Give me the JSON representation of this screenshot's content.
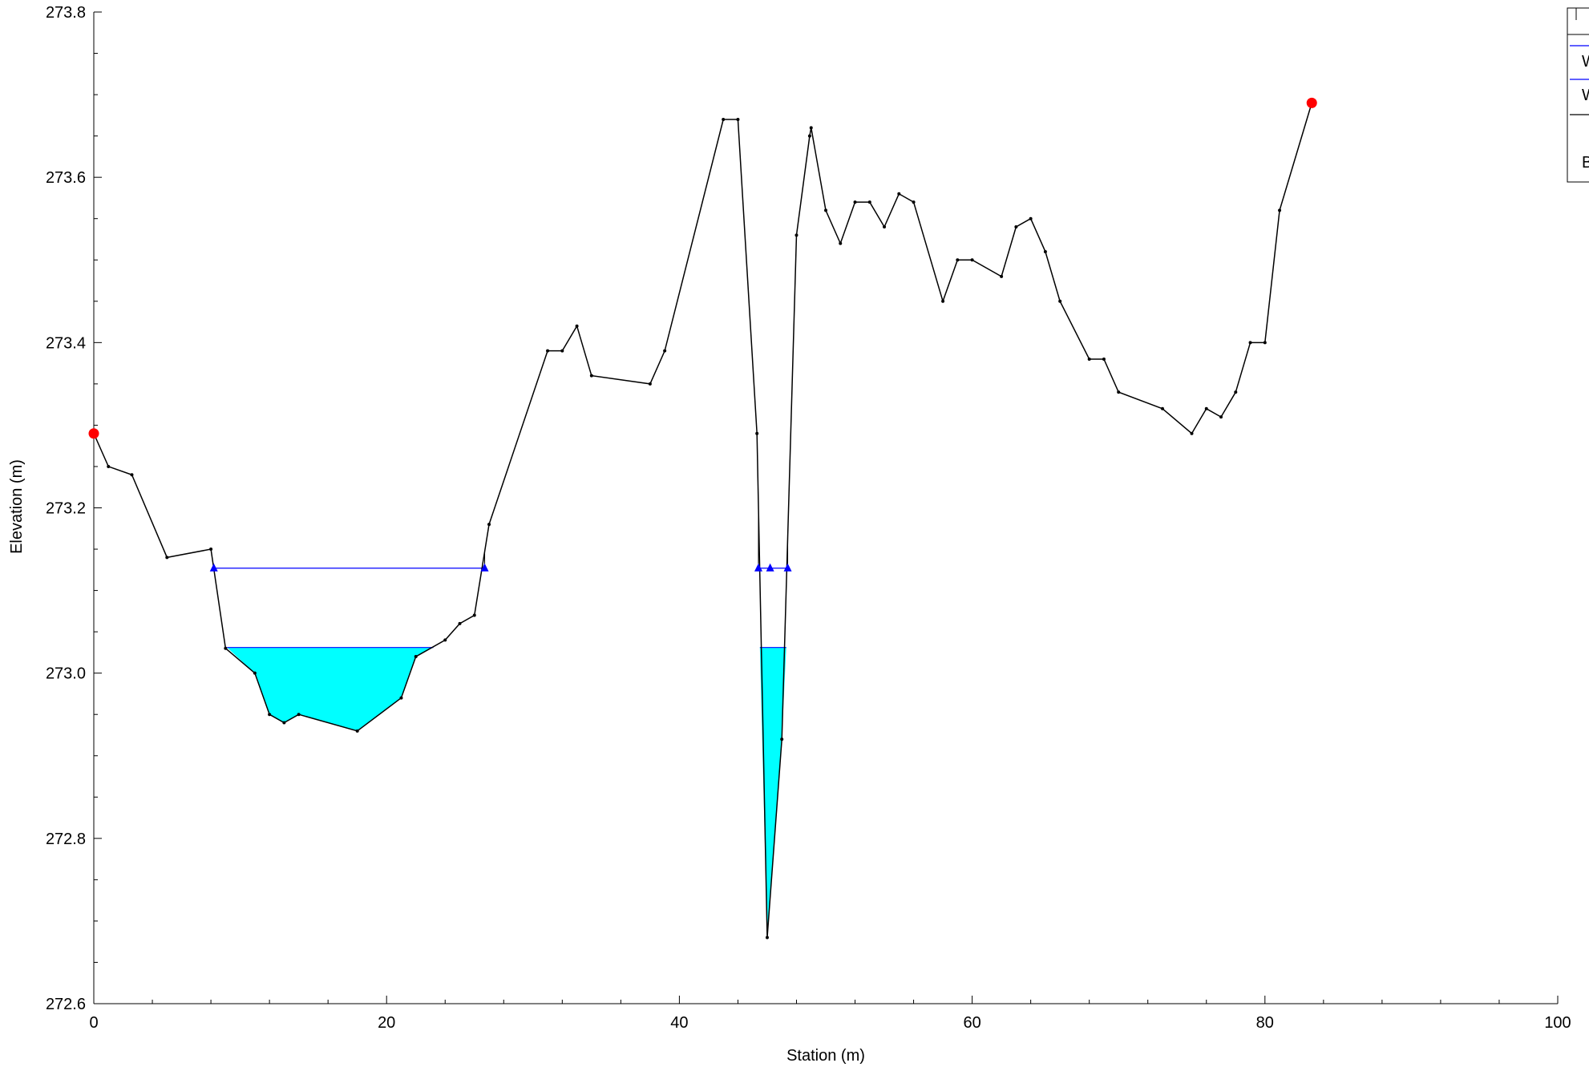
{
  "chart_data": {
    "type": "line",
    "xlabel": "Station (m)",
    "ylabel": "Elevation (m)",
    "xlim": [
      0,
      100
    ],
    "ylim": [
      272.6,
      273.8
    ],
    "x_ticks": [
      0,
      20,
      40,
      60,
      80,
      100
    ],
    "y_ticks": [
      272.6,
      272.8,
      273.0,
      273.2,
      273.4,
      273.6,
      273.8
    ],
    "x_tick_labels": [
      "0",
      "20",
      "40",
      "60",
      "80",
      "100"
    ],
    "y_tick_labels": [
      "272.6",
      "272.8",
      "273.0",
      "273.2",
      "273.4",
      "273.6",
      "273.8"
    ],
    "legend_entries": [
      "W",
      "W",
      "B"
    ],
    "colors": {
      "ground": "#000000",
      "water": "#0000ff",
      "fill": "#00ffff",
      "bank": "#ff0000"
    },
    "ground": [
      [
        0,
        273.29
      ],
      [
        1,
        273.25
      ],
      [
        2.6,
        273.24
      ],
      [
        5,
        273.14
      ],
      [
        8,
        273.15
      ],
      [
        9,
        273.03
      ],
      [
        11,
        273.0
      ],
      [
        12,
        272.95
      ],
      [
        13,
        272.94
      ],
      [
        14,
        272.95
      ],
      [
        18,
        272.93
      ],
      [
        21,
        272.97
      ],
      [
        22,
        273.02
      ],
      [
        24,
        273.04
      ],
      [
        25,
        273.06
      ],
      [
        26,
        273.07
      ],
      [
        27,
        273.18
      ],
      [
        31,
        273.39
      ],
      [
        32,
        273.39
      ],
      [
        33,
        273.42
      ],
      [
        34,
        273.36
      ],
      [
        38,
        273.35
      ],
      [
        39,
        273.39
      ],
      [
        43,
        273.67
      ],
      [
        44,
        273.67
      ],
      [
        45.3,
        273.29
      ],
      [
        46,
        272.68
      ],
      [
        47,
        272.92
      ],
      [
        48,
        273.53
      ],
      [
        48.9,
        273.65
      ],
      [
        49,
        273.66
      ],
      [
        50,
        273.56
      ],
      [
        51,
        273.52
      ],
      [
        52,
        273.57
      ],
      [
        53,
        273.57
      ],
      [
        54,
        273.54
      ],
      [
        55,
        273.58
      ],
      [
        56,
        273.57
      ],
      [
        58,
        273.45
      ],
      [
        59,
        273.5
      ],
      [
        60,
        273.5
      ],
      [
        62,
        273.48
      ],
      [
        63,
        273.54
      ],
      [
        64,
        273.55
      ],
      [
        65,
        273.51
      ],
      [
        66,
        273.45
      ],
      [
        68,
        273.38
      ],
      [
        69,
        273.38
      ],
      [
        70,
        273.34
      ],
      [
        73,
        273.32
      ],
      [
        75,
        273.29
      ],
      [
        76,
        273.32
      ],
      [
        77,
        273.31
      ],
      [
        78,
        273.34
      ],
      [
        79,
        273.4
      ],
      [
        80,
        273.4
      ],
      [
        81,
        273.56
      ],
      [
        83.2,
        273.69
      ]
    ],
    "water_surface_upper": {
      "elevation": 273.127,
      "segments": [
        [
          8.2,
          26.7
        ],
        [
          45.4,
          47.4
        ]
      ],
      "markers": [
        8.2,
        26.7,
        45.4,
        46.2,
        47.4
      ]
    },
    "water_surface_lower": {
      "elevation": 273.031,
      "segments": [
        [
          9.1,
          23.2
        ],
        [
          45.5,
          47.3
        ]
      ]
    },
    "bank_stations": [
      [
        0,
        273.29
      ],
      [
        83.2,
        273.69
      ]
    ]
  }
}
